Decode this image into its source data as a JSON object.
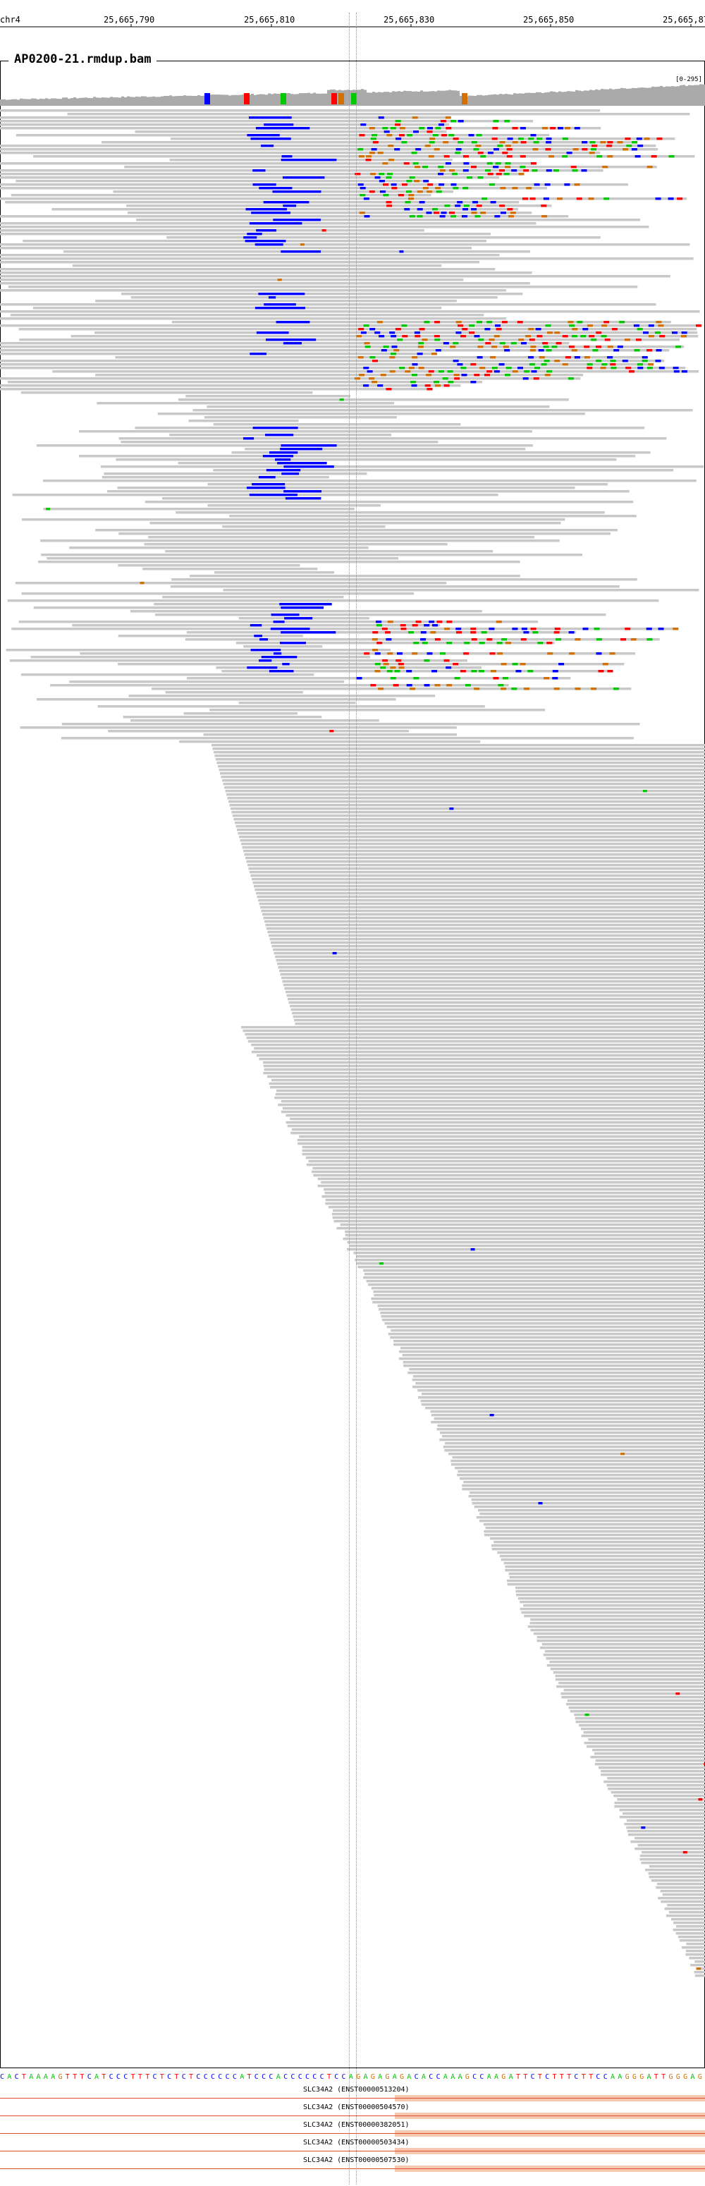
{
  "ruler": {
    "chrom": "chr4",
    "ticks": [
      "25,665,790",
      "25,665,810",
      "25,665,830",
      "25,665,850",
      "25,665,87"
    ]
  },
  "track": {
    "title": "AP0200-21.rmdup.bam",
    "scale": "[0-295]"
  },
  "sequence": "CACTAAAAGTTTCATCCCTTTCTCTCTCCCCCCATCCCACCCCCCTCCAGAGAGAGACACCAAAGCCAAGATTCTCTTTCTTCCAAGGGATTGGGAG",
  "genes": [
    {
      "label": "SLC34A2 (ENST00000513204)"
    },
    {
      "label": "SLC34A2 (ENST00000504570)"
    },
    {
      "label": "SLC34A2 (ENST00000382051)"
    },
    {
      "label": "SLC34A2 (ENST00000503434)"
    },
    {
      "label": "SLC34A2 (ENST00000507530)"
    }
  ],
  "colors": {
    "read": "#c8c8c8",
    "coverage": "#aaaaaa",
    "A": "#00c800",
    "C": "#0000ff",
    "G": "#d17105",
    "T": "#ff0000",
    "gene": "#e05030"
  }
}
